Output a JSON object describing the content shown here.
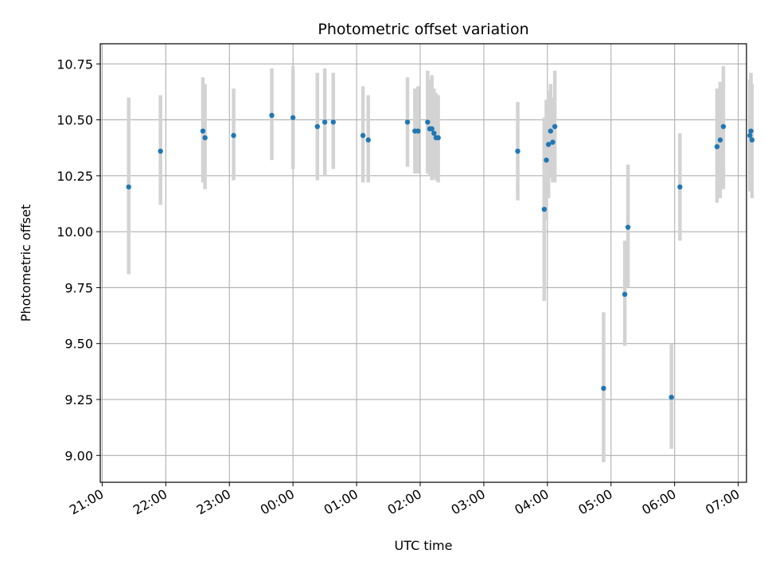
{
  "chart_data": {
    "type": "scatter",
    "title": "Photometric offset variation",
    "xlabel": "UTC time",
    "ylabel": "Photometric offset",
    "x_axis_kind": "time",
    "xlim": [
      "21:00",
      "07:00"
    ],
    "xlim_hours": [
      20.97,
      31.13
    ],
    "ylim": [
      8.88,
      10.84
    ],
    "x_ticks": [
      {
        "label": "21:00",
        "hours": 21
      },
      {
        "label": "22:00",
        "hours": 22
      },
      {
        "label": "23:00",
        "hours": 23
      },
      {
        "label": "00:00",
        "hours": 24
      },
      {
        "label": "01:00",
        "hours": 25
      },
      {
        "label": "02:00",
        "hours": 26
      },
      {
        "label": "03:00",
        "hours": 27
      },
      {
        "label": "04:00",
        "hours": 28
      },
      {
        "label": "05:00",
        "hours": 29
      },
      {
        "label": "06:00",
        "hours": 30
      },
      {
        "label": "07:00",
        "hours": 31
      }
    ],
    "y_ticks": [
      "9.00",
      "9.25",
      "9.50",
      "9.75",
      "10.00",
      "10.25",
      "10.50",
      "10.75"
    ],
    "grid": true,
    "point_color": "#1f77b4",
    "errorbar_color": "#d3d3d3",
    "points": [
      {
        "time": "21:25",
        "y": 10.2,
        "low": 9.81,
        "high": 10.6
      },
      {
        "time": "21:55",
        "y": 10.36,
        "low": 10.12,
        "high": 10.61
      },
      {
        "time": "22:35",
        "y": 10.45,
        "low": 10.22,
        "high": 10.69
      },
      {
        "time": "22:37",
        "y": 10.42,
        "low": 10.19,
        "high": 10.66
      },
      {
        "time": "23:04",
        "y": 10.43,
        "low": 10.23,
        "high": 10.64
      },
      {
        "time": "23:40",
        "y": 10.52,
        "low": 10.32,
        "high": 10.73
      },
      {
        "time": "00:00",
        "y": 10.51,
        "low": 10.28,
        "high": 10.74
      },
      {
        "time": "00:23",
        "y": 10.47,
        "low": 10.23,
        "high": 10.71
      },
      {
        "time": "00:30",
        "y": 10.49,
        "low": 10.25,
        "high": 10.73
      },
      {
        "time": "00:38",
        "y": 10.49,
        "low": 10.28,
        "high": 10.71
      },
      {
        "time": "01:06",
        "y": 10.43,
        "low": 10.22,
        "high": 10.65
      },
      {
        "time": "01:11",
        "y": 10.41,
        "low": 10.22,
        "high": 10.61
      },
      {
        "time": "01:48",
        "y": 10.49,
        "low": 10.29,
        "high": 10.69
      },
      {
        "time": "01:55",
        "y": 10.45,
        "low": 10.26,
        "high": 10.64
      },
      {
        "time": "01:58",
        "y": 10.45,
        "low": 10.26,
        "high": 10.65
      },
      {
        "time": "02:07",
        "y": 10.49,
        "low": 10.26,
        "high": 10.72
      },
      {
        "time": "02:09",
        "y": 10.46,
        "low": 10.25,
        "high": 10.68
      },
      {
        "time": "02:11",
        "y": 10.46,
        "low": 10.23,
        "high": 10.7
      },
      {
        "time": "02:13",
        "y": 10.44,
        "low": 10.24,
        "high": 10.64
      },
      {
        "time": "02:15",
        "y": 10.42,
        "low": 10.23,
        "high": 10.62
      },
      {
        "time": "02:17",
        "y": 10.42,
        "low": 10.22,
        "high": 10.61
      },
      {
        "time": "03:32",
        "y": 10.36,
        "low": 10.14,
        "high": 10.58
      },
      {
        "time": "03:57",
        "y": 10.1,
        "low": 9.69,
        "high": 10.51
      },
      {
        "time": "03:59",
        "y": 10.32,
        "low": 10.05,
        "high": 10.59
      },
      {
        "time": "04:01",
        "y": 10.39,
        "low": 10.15,
        "high": 10.63
      },
      {
        "time": "04:03",
        "y": 10.45,
        "low": 10.24,
        "high": 10.66
      },
      {
        "time": "04:05",
        "y": 10.4,
        "low": 10.22,
        "high": 10.6
      },
      {
        "time": "04:07",
        "y": 10.47,
        "low": 10.22,
        "high": 10.72
      },
      {
        "time": "04:53",
        "y": 9.3,
        "low": 8.97,
        "high": 9.64
      },
      {
        "time": "05:13",
        "y": 9.72,
        "low": 9.49,
        "high": 9.96
      },
      {
        "time": "05:16",
        "y": 10.02,
        "low": 9.75,
        "high": 10.3
      },
      {
        "time": "05:57",
        "y": 9.26,
        "low": 9.03,
        "high": 9.5
      },
      {
        "time": "06:05",
        "y": 10.2,
        "low": 9.96,
        "high": 10.44
      },
      {
        "time": "06:40",
        "y": 10.38,
        "low": 10.13,
        "high": 10.64
      },
      {
        "time": "06:43",
        "y": 10.41,
        "low": 10.15,
        "high": 10.67
      },
      {
        "time": "06:46",
        "y": 10.47,
        "low": 10.19,
        "high": 10.74
      },
      {
        "time": "07:11",
        "y": 10.43,
        "low": 10.18,
        "high": 10.68
      },
      {
        "time": "07:12",
        "y": 10.45,
        "low": 10.19,
        "high": 10.71
      },
      {
        "time": "07:13",
        "y": 10.41,
        "low": 10.15,
        "high": 10.66
      }
    ]
  }
}
